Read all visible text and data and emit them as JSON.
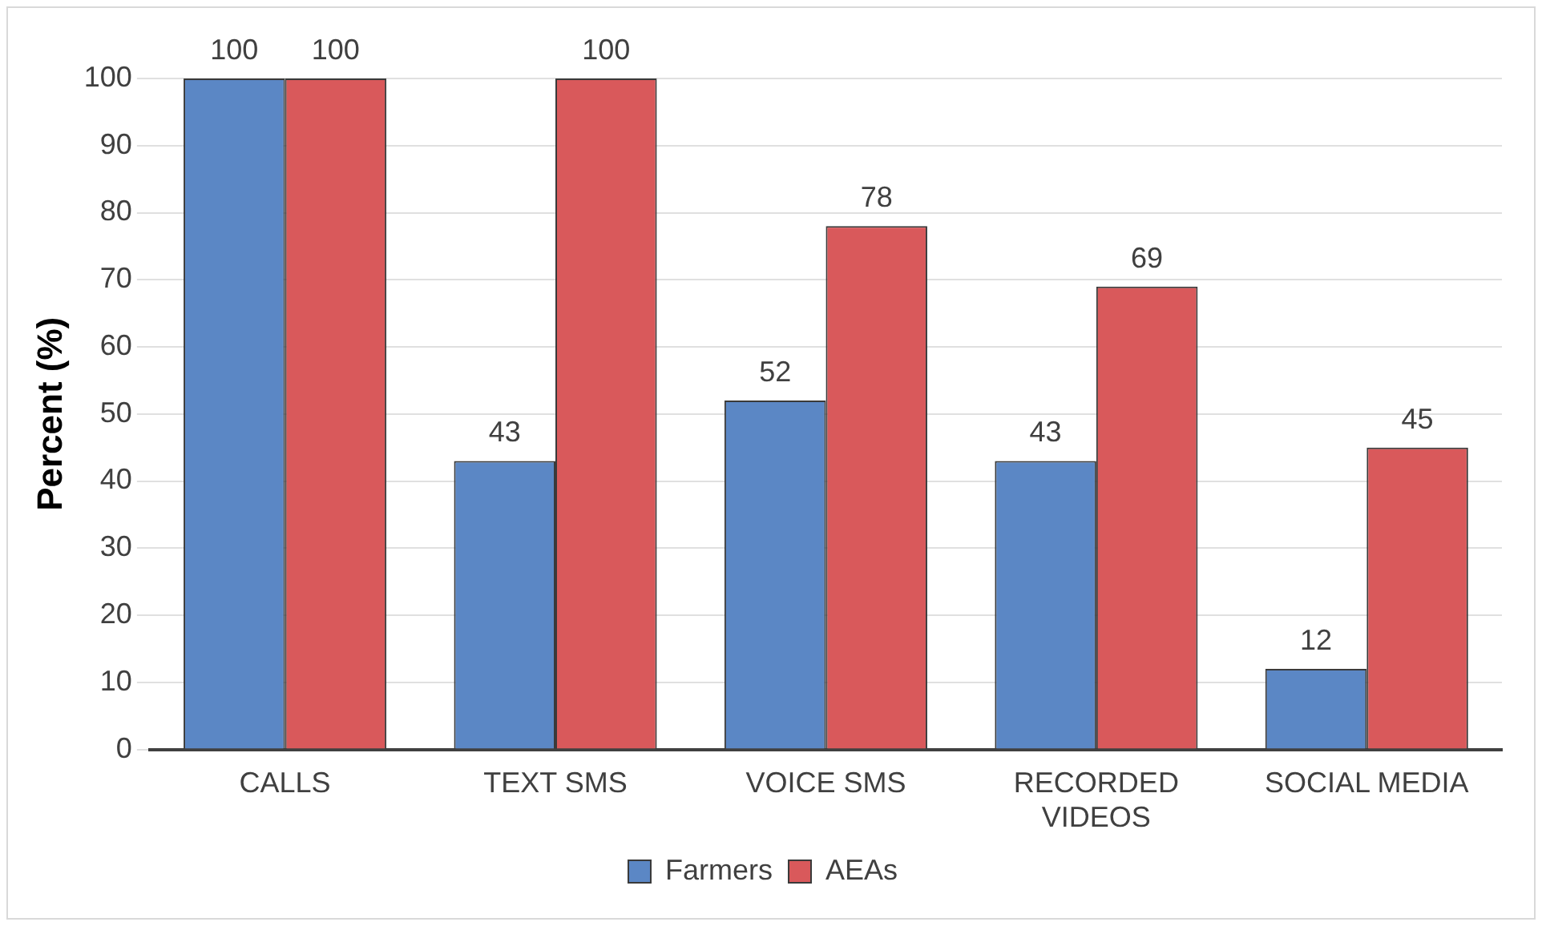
{
  "chart_data": {
    "type": "bar",
    "ylabel": "Percent (%)",
    "categories": [
      "CALLS",
      "TEXT SMS",
      "VOICE SMS",
      "RECORDED VIDEOS",
      "SOCIAL MEDIA"
    ],
    "series": [
      {
        "name": "Farmers",
        "color": "#5b87c5",
        "values": [
          100,
          43,
          52,
          43,
          12
        ]
      },
      {
        "name": "AEAs",
        "color": "#d9595b",
        "values": [
          100,
          100,
          78,
          69,
          45
        ]
      }
    ],
    "ylim": [
      0,
      100
    ],
    "yticks": [
      0,
      10,
      20,
      30,
      40,
      50,
      60,
      70,
      80,
      90,
      100
    ],
    "grid": "y",
    "legend": "bottom",
    "data_labels": true
  }
}
